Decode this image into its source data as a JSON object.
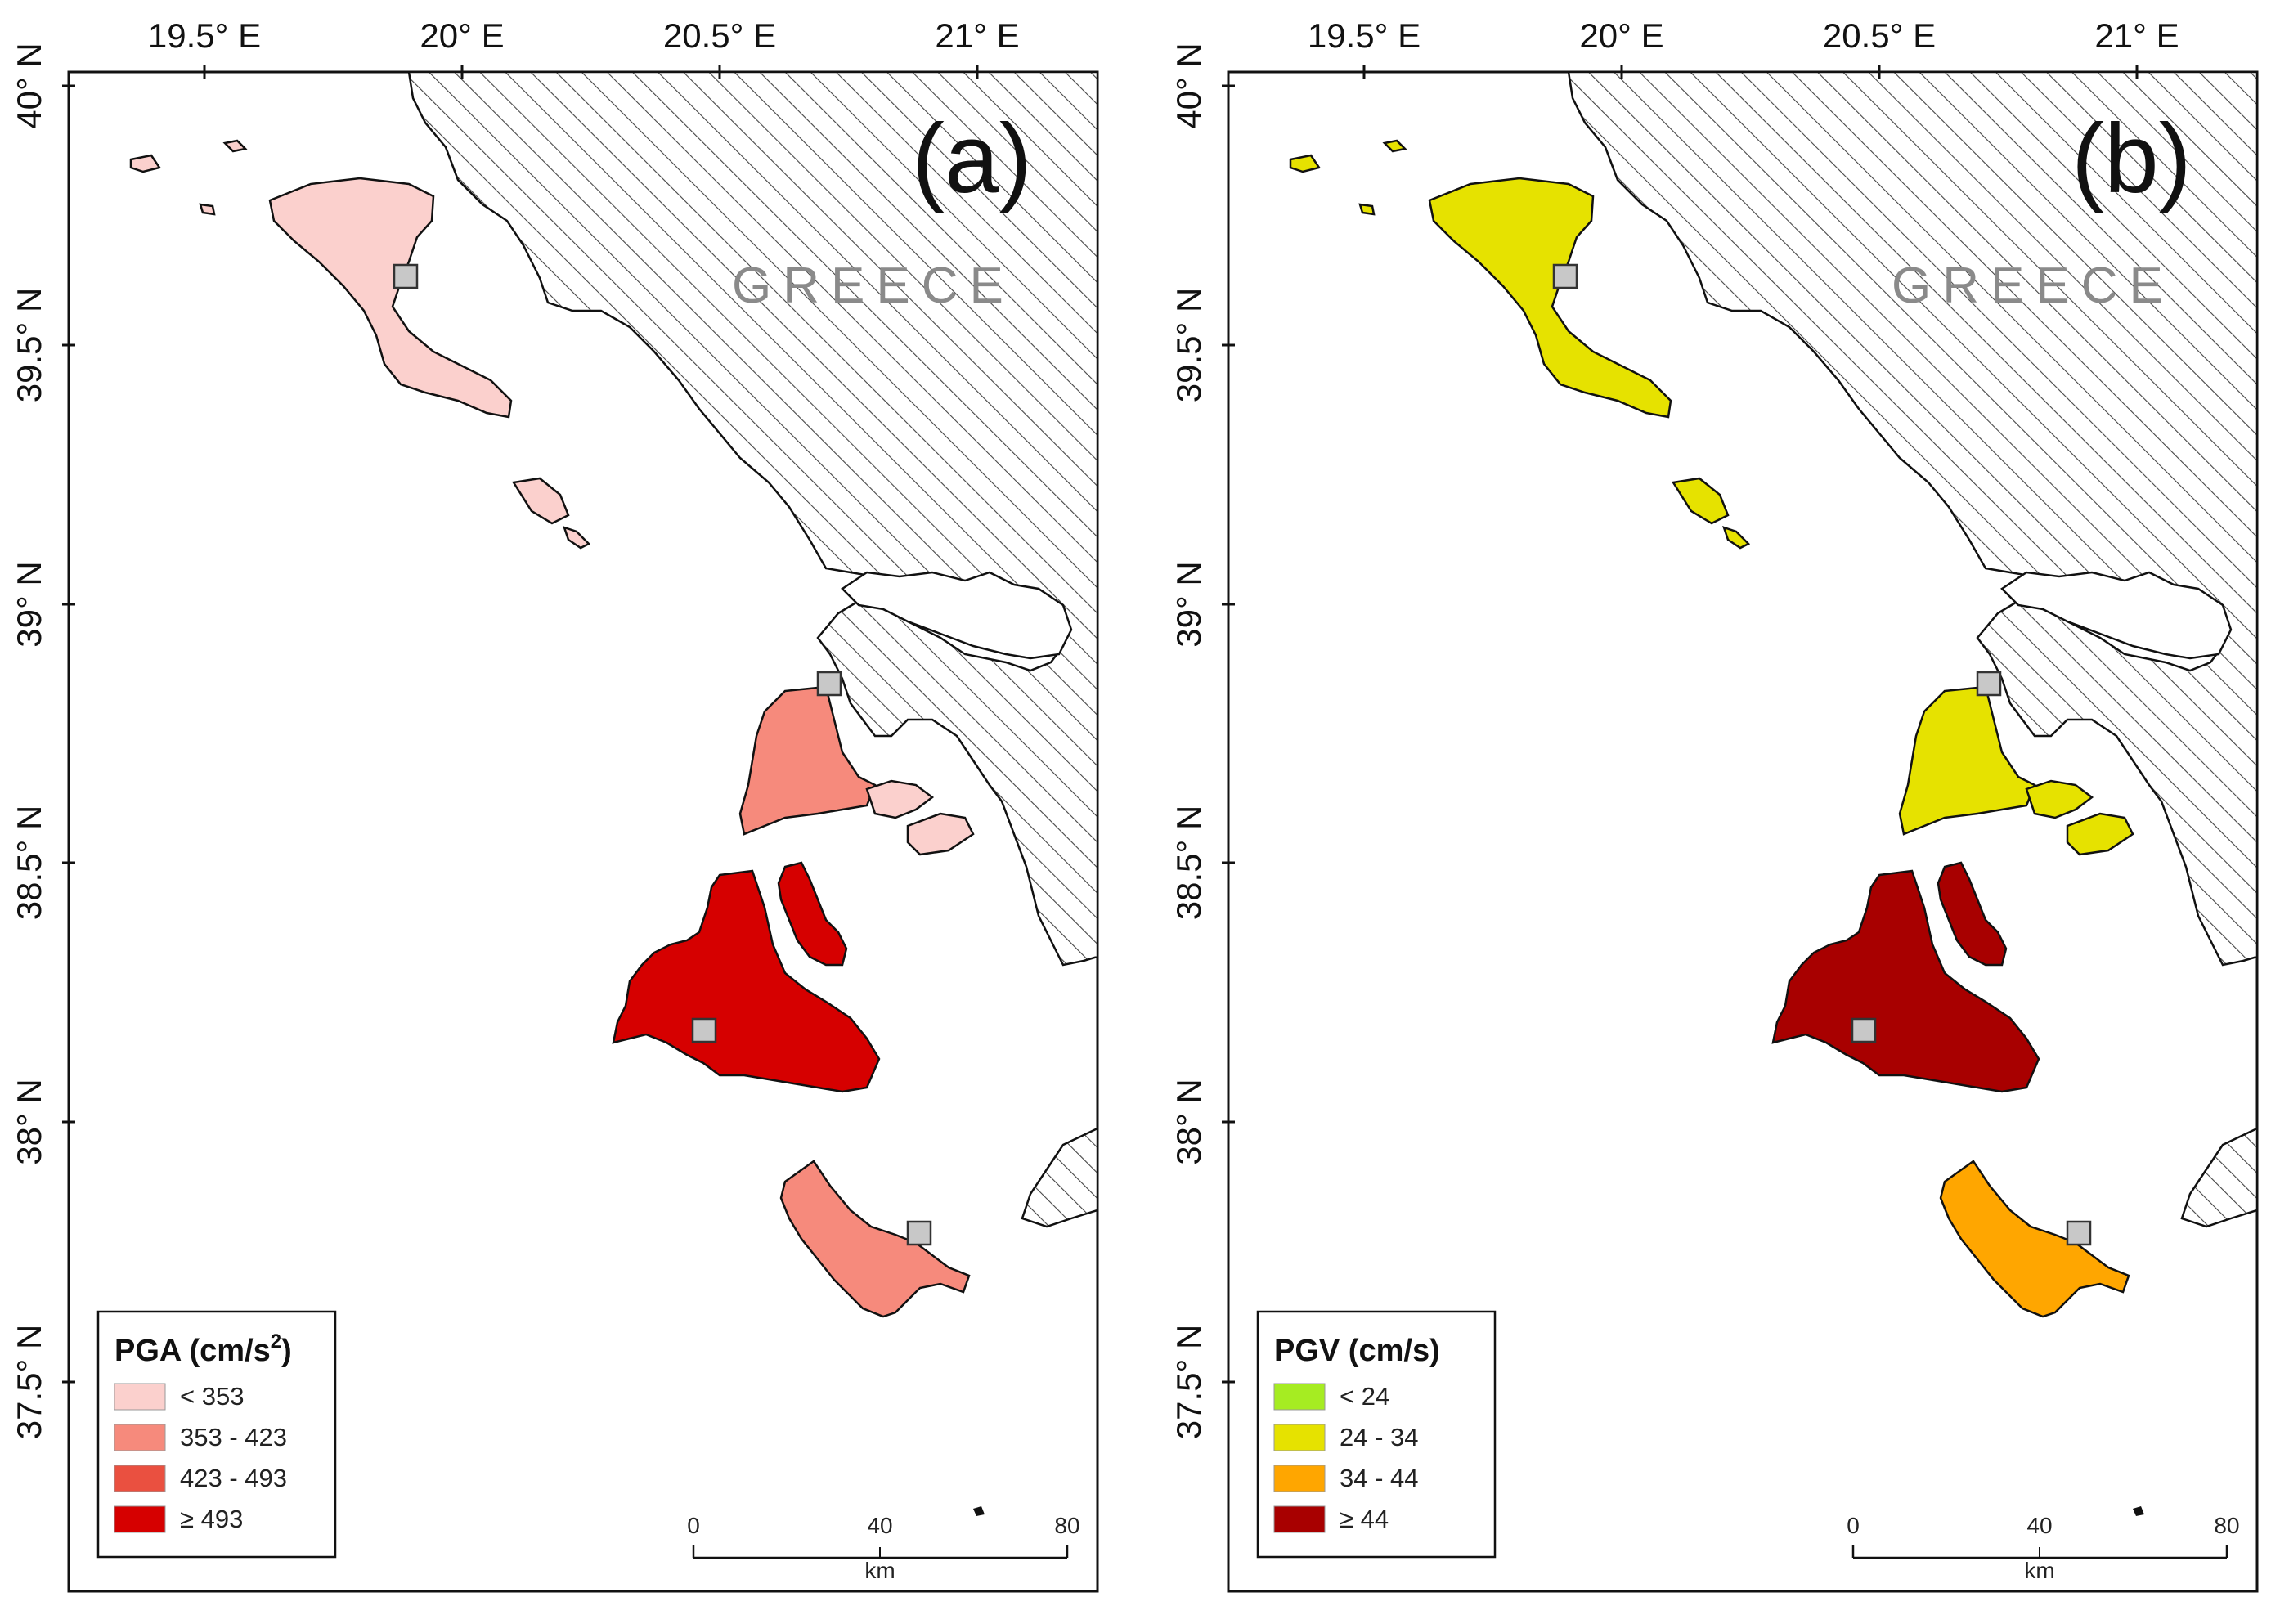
{
  "lon_labels": [
    "19.5° E",
    "20° E",
    "20.5° E",
    "21° E"
  ],
  "lat_labels": [
    "40° N",
    "39.5° N",
    "39° N",
    "38.5° N",
    "38° N",
    "37.5° N"
  ],
  "country_label": "GREECE",
  "scale_bar": {
    "ticks": [
      "0",
      "40",
      "80"
    ],
    "unit": "km"
  },
  "panels": [
    {
      "letter": "(a)",
      "legend": {
        "title": "PGA (cm/s",
        "title_sup": "2",
        "title_end": ")",
        "entries": [
          {
            "label": "< 353",
            "color": "#fbd0cd"
          },
          {
            "label": "353 - 423",
            "color": "#f68a7c"
          },
          {
            "label": "423 - 493",
            "color": "#ea5040"
          },
          {
            "label": "≥ 493",
            "color": "#d60000"
          }
        ]
      },
      "island_colors": {
        "corfu": "#fbd0cd",
        "paxoi": "#fbd0cd",
        "lefkada": "#f68a7c",
        "meganisi": "#fbd0cd",
        "kefalonia": "#d60000",
        "ithaca": "#d60000",
        "zakynthos": "#f68a7c"
      }
    },
    {
      "letter": "(b)",
      "legend": {
        "title": "PGV (cm/s)",
        "title_sup": "",
        "title_end": "",
        "entries": [
          {
            "label": "< 24",
            "color": "#a6ec22"
          },
          {
            "label": "24 - 34",
            "color": "#e6e200"
          },
          {
            "label": "34 - 44",
            "color": "#ffa600"
          },
          {
            "label": "≥ 44",
            "color": "#a80000"
          }
        ]
      },
      "island_colors": {
        "corfu": "#e6e200",
        "paxoi": "#e6e200",
        "lefkada": "#e6e200",
        "meganisi": "#e6e200",
        "kefalonia": "#a80000",
        "ithaca": "#a80000",
        "zakynthos": "#ffa600"
      }
    }
  ]
}
